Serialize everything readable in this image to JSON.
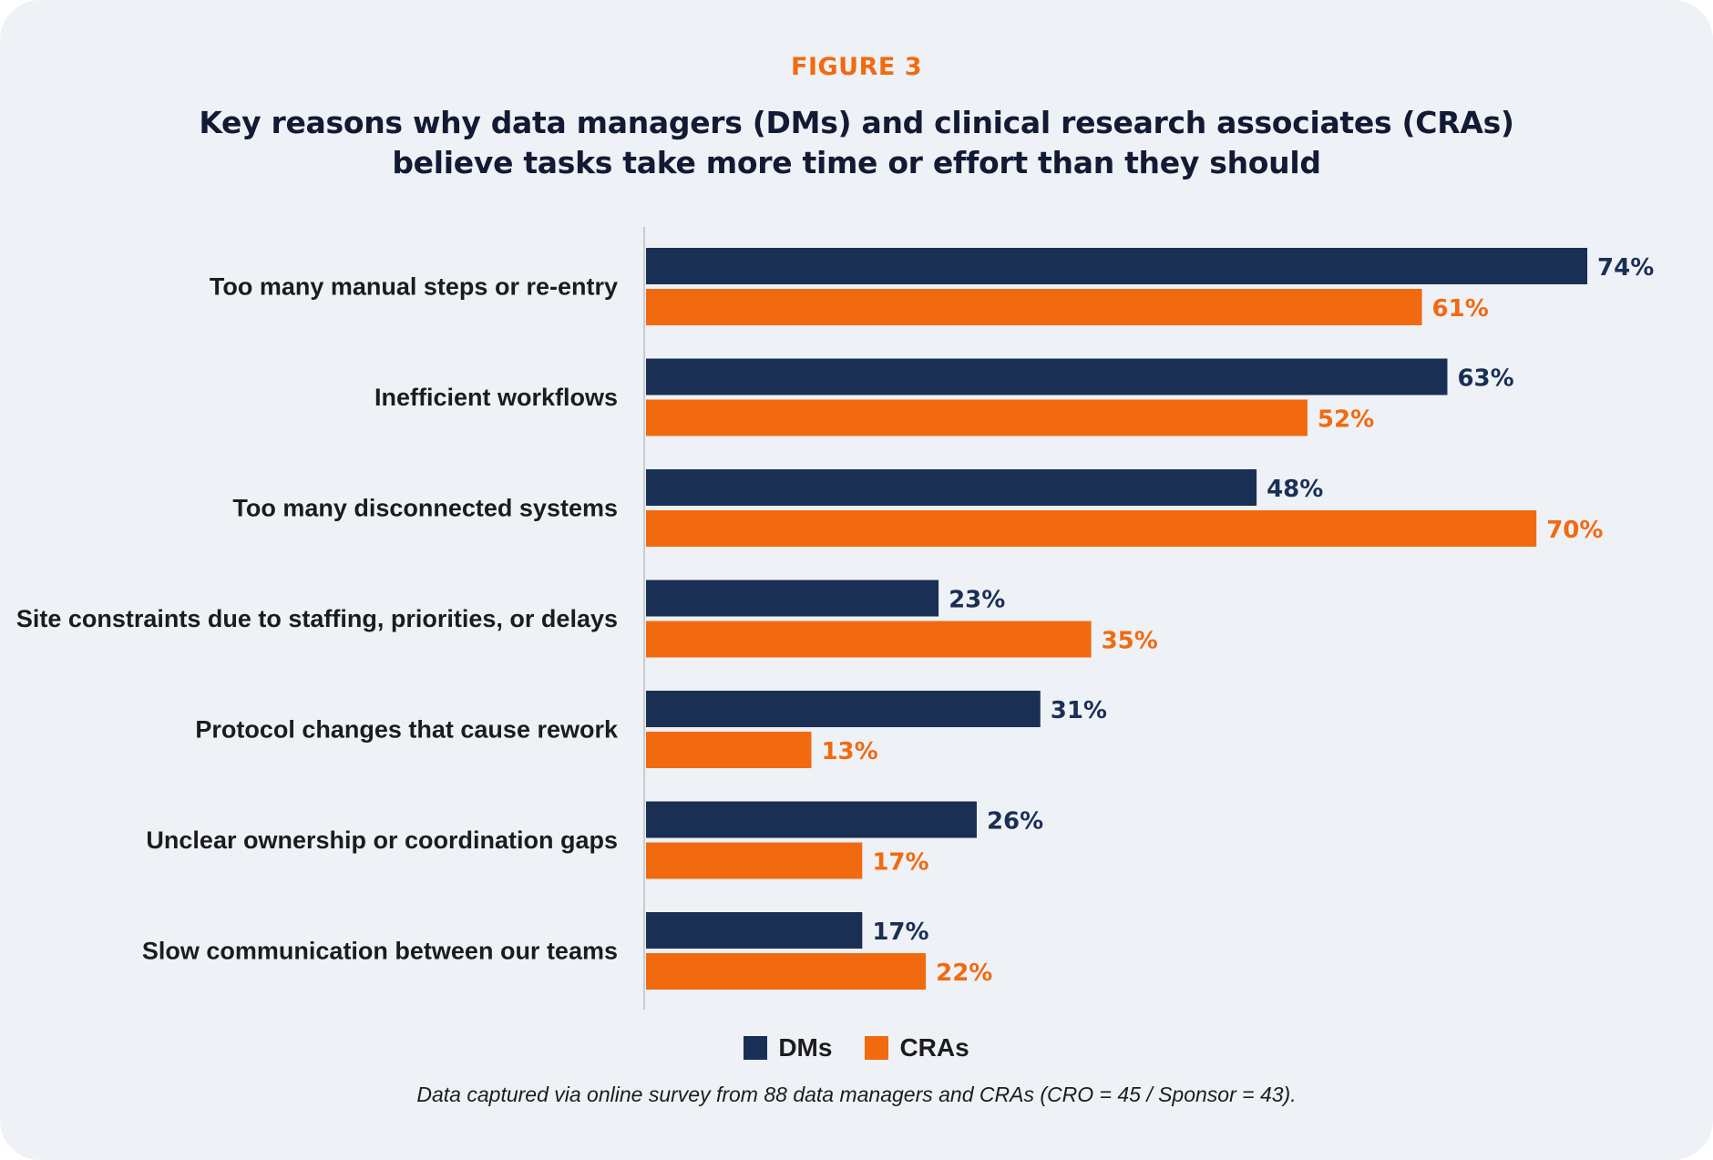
{
  "header": {
    "figure_label": "FIGURE 3",
    "title_line1": "Key reasons why data managers (DMs) and clinical research associates (CRAs)",
    "title_line2": "believe tasks take more time or effort than they should"
  },
  "colors": {
    "dms": "#1A2F54",
    "cras": "#F26A10",
    "background": "#EEF1F6",
    "axis": "#C8CBD0"
  },
  "legend": [
    {
      "name": "DMs",
      "color": "#1A2F54"
    },
    {
      "name": "CRAs",
      "color": "#F26A10"
    }
  ],
  "footnote": "Data captured via online survey from 88 data managers and CRAs (CRO = 45 / Sponsor = 43).",
  "chart_data": {
    "type": "bar",
    "orientation": "horizontal",
    "title": "Key reasons why data managers (DMs) and clinical research associates (CRAs) believe tasks take more time or effort than they should",
    "xlabel": "",
    "ylabel": "",
    "xlim": [
      0,
      100
    ],
    "unit": "%",
    "grid": false,
    "legend_position": "bottom-center",
    "categories": [
      "Too many manual steps or re-entry",
      "Inefficient workflows",
      "Too many disconnected systems",
      "Site constraints due to staffing, priorities, or delays",
      "Protocol changes that cause rework",
      "Unclear ownership or coordination gaps",
      "Slow communication between our teams"
    ],
    "series": [
      {
        "name": "DMs",
        "color": "#1A2F54",
        "values": [
          74,
          63,
          48,
          23,
          31,
          26,
          17
        ]
      },
      {
        "name": "CRAs",
        "color": "#F26A10",
        "values": [
          61,
          52,
          70,
          35,
          13,
          17,
          22
        ]
      }
    ]
  }
}
